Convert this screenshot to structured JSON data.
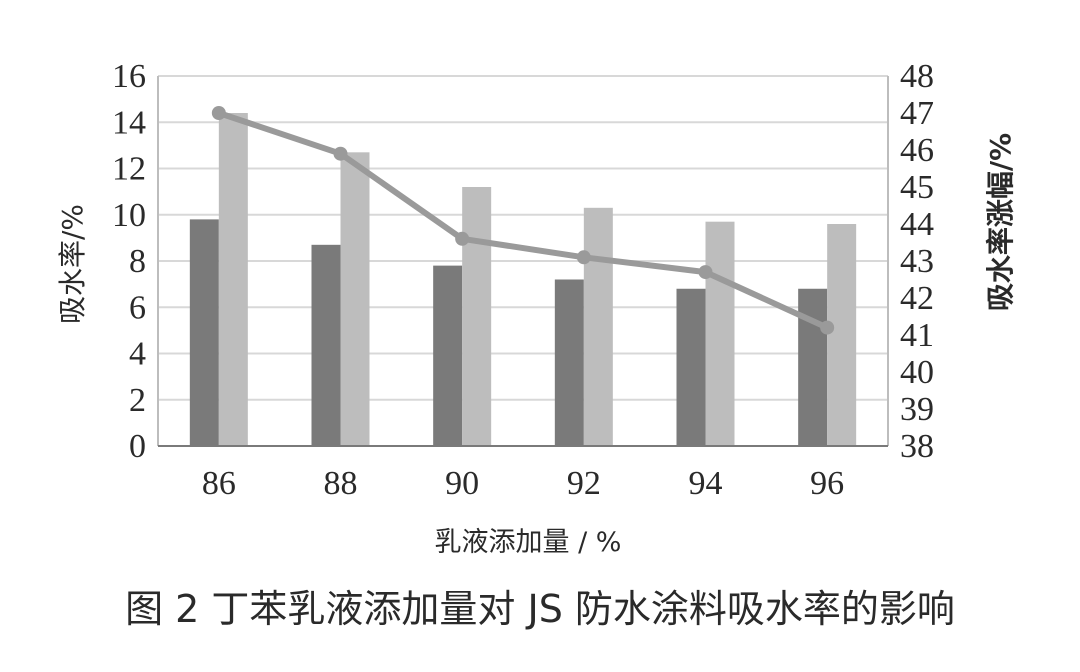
{
  "chart_data": {
    "type": "bar",
    "categories": [
      "86",
      "88",
      "90",
      "92",
      "94",
      "96"
    ],
    "ylabel": "吸水率/%",
    "y2label": "吸水率涨幅/%",
    "xlabel": "乳液添加量 / %",
    "caption": "图 2 丁苯乳液添加量对 JS 防水涂料吸水率的影响",
    "ylim": [
      0,
      16
    ],
    "y_ticks": [
      0,
      2,
      4,
      6,
      8,
      10,
      12,
      14,
      16
    ],
    "y2lim": [
      38,
      48
    ],
    "y2_ticks": [
      38,
      39,
      40,
      41,
      42,
      43,
      44,
      45,
      46,
      47,
      48
    ],
    "grid": true,
    "series": [
      {
        "values": [
          9.8,
          8.7,
          7.8,
          7.2,
          6.8,
          6.8
        ],
        "kind": "bar",
        "axis": "left",
        "color": "#7a7a7a"
      },
      {
        "values": [
          14.4,
          12.7,
          11.2,
          10.3,
          9.7,
          9.6
        ],
        "kind": "bar",
        "axis": "left",
        "color": "#bdbdbd"
      },
      {
        "values": [
          47.0,
          45.9,
          43.6,
          43.1,
          42.7,
          41.2
        ],
        "kind": "line",
        "axis": "right",
        "color": "#9a9a9a"
      }
    ]
  }
}
